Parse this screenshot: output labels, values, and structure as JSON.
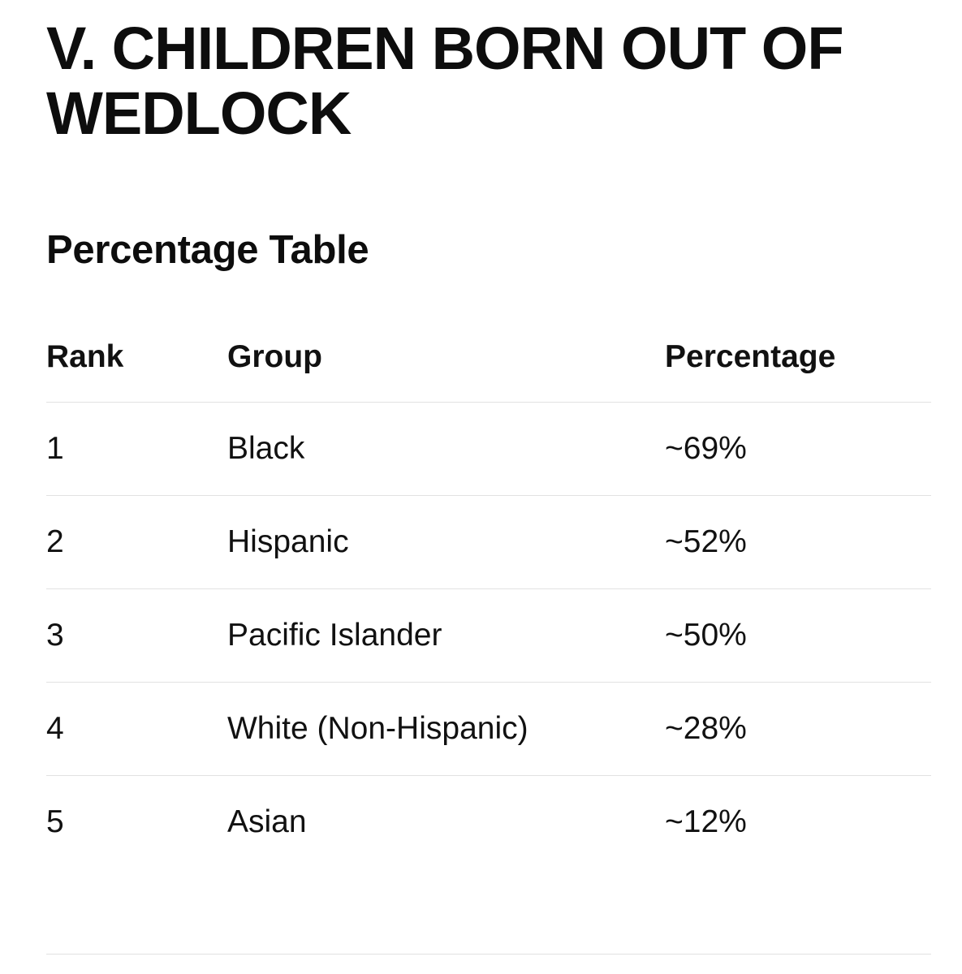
{
  "document": {
    "title": "V. CHILDREN BORN OUT OF WEDLOCK",
    "section_heading": "Percentage Table"
  },
  "table": {
    "headers": {
      "rank": "Rank",
      "group": "Group",
      "percentage": "Percentage"
    },
    "rows": [
      {
        "rank": "1",
        "group": "Black",
        "percentage": "~69%"
      },
      {
        "rank": "2",
        "group": "Hispanic",
        "percentage": "~52%"
      },
      {
        "rank": "3",
        "group": "Pacific Islander",
        "percentage": "~50%"
      },
      {
        "rank": "4",
        "group": "White (Non-Hispanic)",
        "percentage": "~28%"
      },
      {
        "rank": "5",
        "group": "Asian",
        "percentage": "~12%"
      }
    ]
  },
  "colors": {
    "text": "#111111",
    "divider": "#e2e2e2",
    "background": "#ffffff"
  }
}
